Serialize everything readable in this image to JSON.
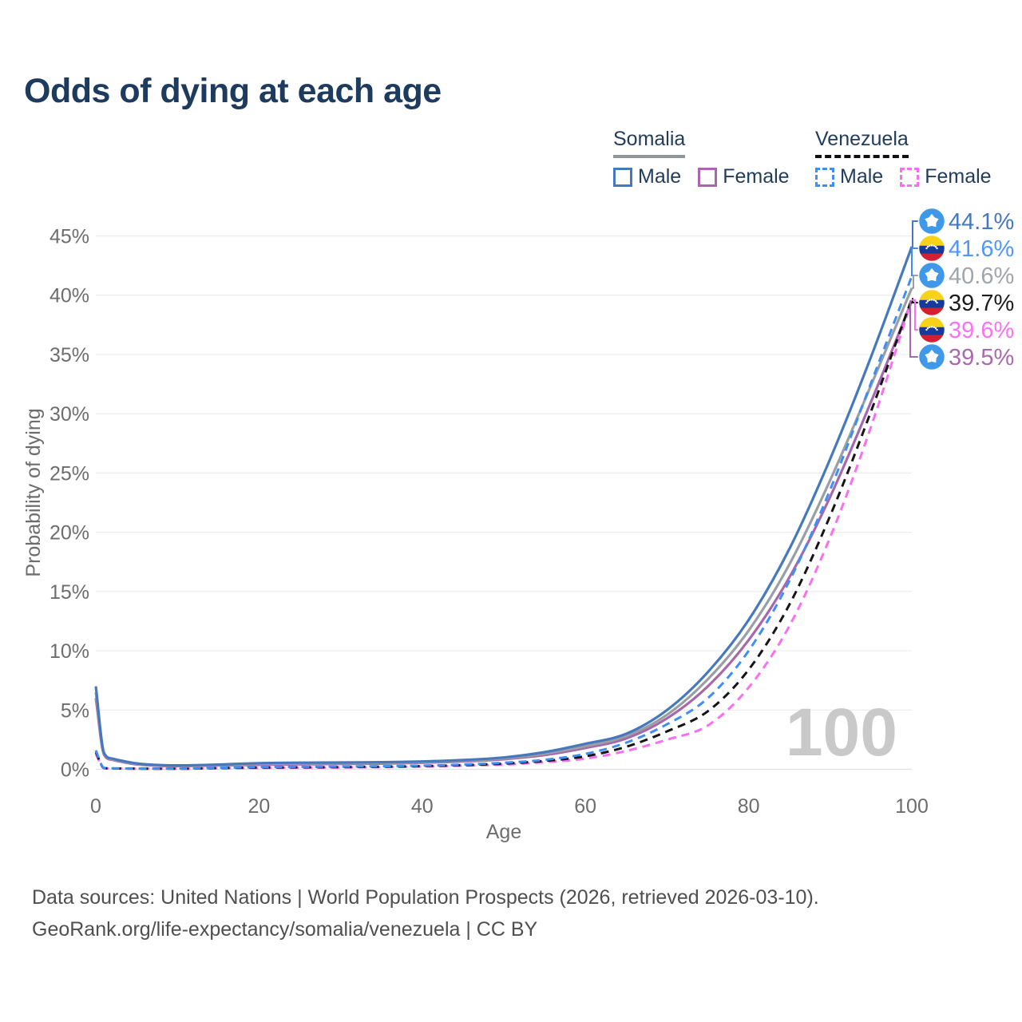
{
  "title": "Odds of dying at each age",
  "legend": {
    "somalia": {
      "country": "Somalia",
      "male": "Male",
      "female": "Female"
    },
    "venezuela": {
      "country": "Venezuela",
      "male": "Male",
      "female": "Female"
    }
  },
  "footer": {
    "line1": "Data sources: United Nations | World Population Prospects (2026, retrieved 2026-03-10).",
    "line2": "GeoRank.org/life-expectancy/somalia/venezuela | CC BY"
  },
  "flag_icons": {
    "somalia": {
      "bg": "#3f98e8",
      "star": "#ffffff"
    },
    "venezuela": {
      "yellow": "#f8d21a",
      "blue": "#17399b",
      "red": "#d31e34",
      "stars": "#ffffff"
    }
  },
  "chart_data": {
    "type": "line",
    "title": "Odds of dying at each age",
    "xlabel": "Age",
    "ylabel": "Probability of dying",
    "xlim": [
      0,
      100
    ],
    "ylim": [
      0,
      45
    ],
    "x_ticks": [
      0,
      20,
      40,
      60,
      80,
      100
    ],
    "y_ticks": [
      0,
      5,
      10,
      15,
      20,
      25,
      30,
      35,
      40,
      45
    ],
    "y_tick_suffix": "%",
    "grid": "horizontal",
    "legend_position": "top-right",
    "watermark": "100",
    "x": [
      0,
      1,
      2,
      5,
      10,
      15,
      20,
      25,
      30,
      35,
      40,
      45,
      50,
      55,
      60,
      65,
      70,
      75,
      80,
      85,
      90,
      95,
      100
    ],
    "series": [
      {
        "id": "somalia-male",
        "name": "Somalia Male",
        "country": "somalia",
        "sex": "male",
        "line": "solid",
        "color": "#4678bd",
        "label_color": "#4678bd",
        "end_label": "44.1%",
        "values": [
          7.0,
          1.4,
          0.9,
          0.5,
          0.33,
          0.4,
          0.52,
          0.56,
          0.57,
          0.6,
          0.66,
          0.78,
          1.0,
          1.45,
          2.15,
          3.0,
          5.0,
          8.2,
          12.6,
          18.6,
          26.2,
          34.8,
          44.1
        ]
      },
      {
        "id": "venezuela-male",
        "name": "Venezuela Male",
        "country": "venezuela",
        "sex": "male",
        "line": "dashed",
        "color": "#3e8ef7",
        "label_color": "#4f97fb",
        "end_label": "41.6%",
        "values": [
          1.6,
          0.12,
          0.08,
          0.06,
          0.06,
          0.12,
          0.19,
          0.21,
          0.23,
          0.26,
          0.31,
          0.4,
          0.55,
          0.8,
          1.3,
          2.25,
          3.8,
          6.0,
          10.0,
          15.9,
          23.6,
          32.6,
          41.6
        ]
      },
      {
        "id": "somalia-both",
        "name": "Somalia Both sexes",
        "country": "somalia",
        "sex": "both",
        "line": "solid",
        "color": "#9a9fa4",
        "label_color": "#a0a5aa",
        "end_label": "40.6%",
        "values": [
          6.5,
          1.32,
          0.85,
          0.46,
          0.3,
          0.36,
          0.45,
          0.49,
          0.51,
          0.54,
          0.6,
          0.72,
          0.92,
          1.32,
          1.95,
          2.8,
          4.6,
          7.6,
          11.7,
          17.3,
          24.4,
          32.4,
          40.6
        ]
      },
      {
        "id": "venezuela-both",
        "name": "Venezuela Both sexes",
        "country": "venezuela",
        "sex": "both",
        "line": "dashed",
        "color": "#151515",
        "label_color": "#1c1c1c",
        "end_label": "39.7%",
        "values": [
          1.45,
          0.11,
          0.07,
          0.055,
          0.05,
          0.1,
          0.15,
          0.17,
          0.19,
          0.22,
          0.27,
          0.35,
          0.48,
          0.7,
          1.1,
          1.9,
          3.2,
          4.9,
          8.4,
          13.9,
          21.4,
          30.2,
          39.7
        ]
      },
      {
        "id": "venezuela-female",
        "name": "Venezuela Female",
        "country": "venezuela",
        "sex": "female",
        "line": "dashed",
        "color": "#fb6ef0",
        "label_color": "#fd70f5",
        "end_label": "39.6%",
        "values": [
          1.3,
          0.1,
          0.065,
          0.05,
          0.045,
          0.08,
          0.11,
          0.13,
          0.15,
          0.18,
          0.23,
          0.3,
          0.4,
          0.6,
          0.9,
          1.55,
          2.5,
          3.7,
          6.9,
          12.1,
          19.6,
          28.9,
          39.6
        ]
      },
      {
        "id": "somalia-female",
        "name": "Somalia Female",
        "country": "somalia",
        "sex": "female",
        "line": "solid",
        "color": "#a867ab",
        "label_color": "#a869ae",
        "end_label": "39.5%",
        "values": [
          6.0,
          1.25,
          0.8,
          0.42,
          0.27,
          0.32,
          0.38,
          0.42,
          0.45,
          0.48,
          0.55,
          0.66,
          0.85,
          1.2,
          1.8,
          2.6,
          4.3,
          7.0,
          10.9,
          16.2,
          23.0,
          31.0,
          39.5
        ]
      }
    ]
  }
}
